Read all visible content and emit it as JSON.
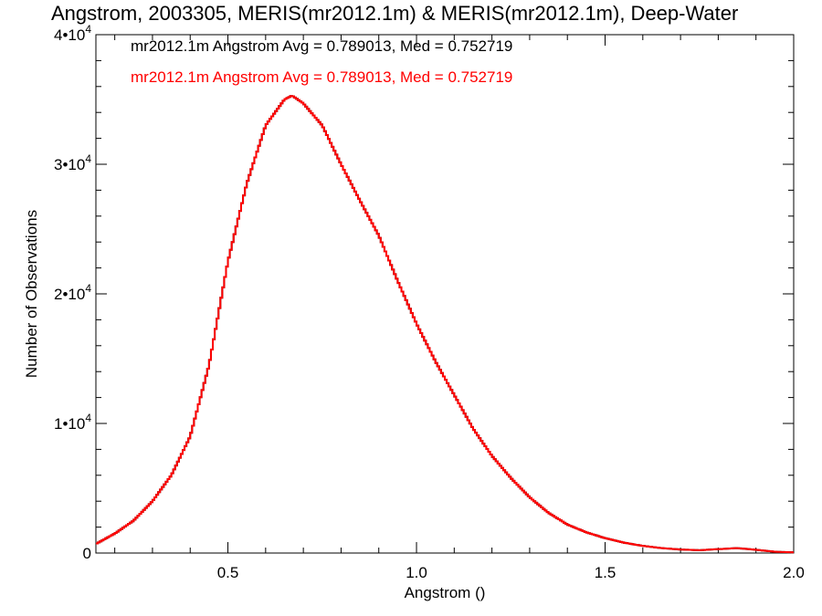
{
  "chart_data": {
    "type": "line",
    "title": "Angstrom, 2003305, MERIS(mr2012.1m) & MERIS(mr2012.1m), Deep-Water",
    "xlabel": "Angstrom ()",
    "ylabel": "Number of Observations",
    "xlim": [
      0.15,
      2.0
    ],
    "ylim": [
      0,
      40000
    ],
    "x_ticks": [
      {
        "value": 0.5,
        "label": "0.5"
      },
      {
        "value": 1.0,
        "label": "1.0"
      },
      {
        "value": 1.5,
        "label": "1.5"
      },
      {
        "value": 2.0,
        "label": "2.0"
      }
    ],
    "y_ticks": [
      {
        "value": 0,
        "mant": "0",
        "exp": ""
      },
      {
        "value": 10000,
        "mant": "1•10",
        "exp": "4"
      },
      {
        "value": 20000,
        "mant": "2•10",
        "exp": "4"
      },
      {
        "value": 30000,
        "mant": "3•10",
        "exp": "4"
      },
      {
        "value": 40000,
        "mant": "4•10",
        "exp": "4"
      }
    ],
    "grid": false,
    "series": [
      {
        "name": "mr2012.1m Angstrom Avg = 0.789013, Med = 0.752719",
        "color": "#000000",
        "x": [
          0.15,
          0.2,
          0.25,
          0.3,
          0.35,
          0.4,
          0.45,
          0.5,
          0.55,
          0.6,
          0.65,
          0.67,
          0.7,
          0.75,
          0.8,
          0.85,
          0.9,
          0.95,
          1.0,
          1.05,
          1.1,
          1.15,
          1.2,
          1.25,
          1.3,
          1.35,
          1.4,
          1.45,
          1.5,
          1.55,
          1.6,
          1.65,
          1.7,
          1.75,
          1.8,
          1.85,
          1.9,
          1.95,
          2.0
        ],
        "y": [
          700,
          1500,
          2500,
          4000,
          6000,
          9000,
          14500,
          22500,
          28500,
          33000,
          35000,
          35300,
          34700,
          33000,
          30000,
          27200,
          24500,
          21000,
          17700,
          14800,
          12200,
          9600,
          7500,
          5800,
          4300,
          3100,
          2200,
          1600,
          1150,
          800,
          550,
          380,
          270,
          220,
          300,
          380,
          250,
          100,
          50
        ]
      },
      {
        "name": "mr2012.1m Angstrom Avg = 0.789013, Med = 0.752719",
        "color": "#ff0000",
        "x": [
          0.15,
          0.2,
          0.25,
          0.3,
          0.35,
          0.4,
          0.45,
          0.5,
          0.55,
          0.6,
          0.65,
          0.67,
          0.7,
          0.75,
          0.8,
          0.85,
          0.9,
          0.95,
          1.0,
          1.05,
          1.1,
          1.15,
          1.2,
          1.25,
          1.3,
          1.35,
          1.4,
          1.45,
          1.5,
          1.55,
          1.6,
          1.65,
          1.7,
          1.75,
          1.8,
          1.85,
          1.9,
          1.95,
          2.0
        ],
        "y": [
          700,
          1500,
          2500,
          4000,
          6000,
          9000,
          14500,
          22500,
          28500,
          33000,
          35000,
          35300,
          34700,
          33000,
          30000,
          27200,
          24500,
          21000,
          17700,
          14800,
          12200,
          9600,
          7500,
          5800,
          4300,
          3100,
          2200,
          1600,
          1150,
          800,
          550,
          380,
          270,
          220,
          300,
          380,
          250,
          100,
          50
        ]
      }
    ]
  }
}
